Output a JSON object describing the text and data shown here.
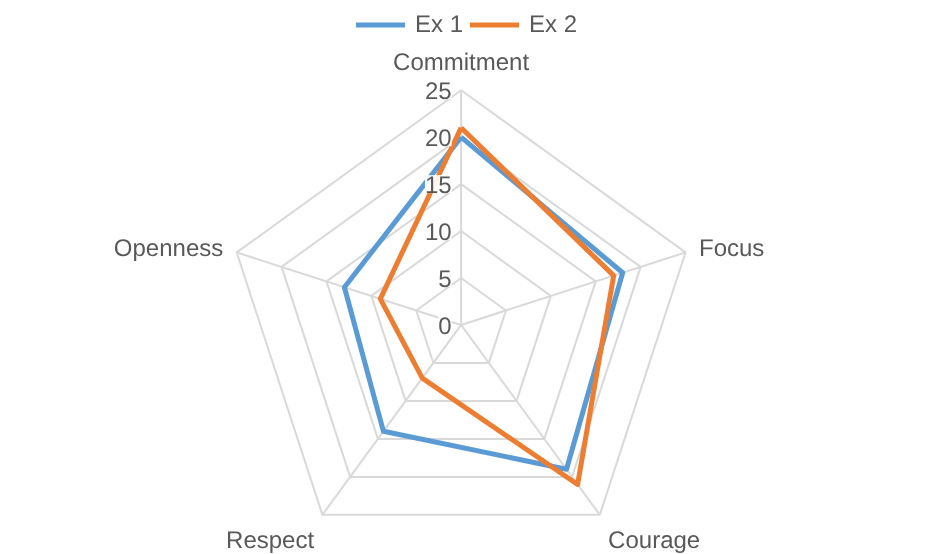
{
  "chart_data": {
    "type": "radar",
    "categories": [
      "Commitment",
      "Focus",
      "Courage",
      "Respect",
      "Openness"
    ],
    "series": [
      {
        "name": "Ex 1",
        "color": "#5b9bd5",
        "values": [
          20,
          18,
          19,
          14,
          13
        ]
      },
      {
        "name": "Ex 2",
        "color": "#ed7d31",
        "values": [
          21,
          17,
          21,
          7,
          9
        ]
      }
    ],
    "ylim": [
      0,
      25
    ],
    "yticks": [
      0,
      5,
      10,
      15,
      20,
      25
    ],
    "legend": "top",
    "grid": true,
    "marker": "none",
    "line_style": "solid"
  }
}
